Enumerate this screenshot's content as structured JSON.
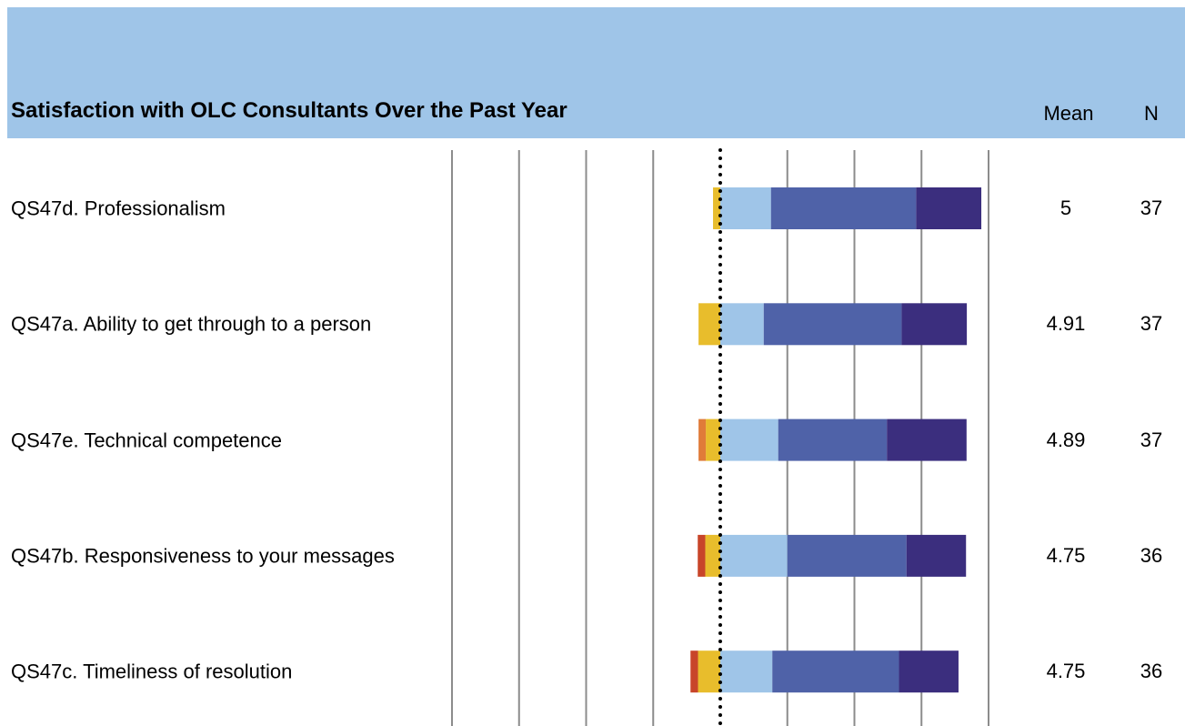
{
  "chart_data": {
    "type": "diverging_bar",
    "title": "Satisfaction with OLC Consultants Over the Past Year",
    "column_headers": [
      "Mean",
      "N"
    ],
    "categories": [
      "QS47d. Professionalism",
      "QS47a. Ability to get through to a person",
      "QS47e. Technical competence",
      "QS47b. Responsiveness to your messages",
      "QS47c. Timeliness of resolution"
    ],
    "mean": [
      5,
      4.91,
      4.89,
      4.75,
      4.75
    ],
    "n": [
      37,
      37,
      37,
      36,
      36
    ],
    "series": [
      {
        "color": "#c8452a",
        "values": [
          0,
          0,
          0,
          -2.8,
          -2.8
        ]
      },
      {
        "color": "#e07b39",
        "values": [
          0,
          0,
          -2.7,
          0,
          0
        ]
      },
      {
        "color": "#e8bd2c",
        "values": [
          -2.7,
          -8.1,
          -5.4,
          -5.6,
          -8.3
        ]
      },
      {
        "color": "#9fc5e8",
        "values": [
          18.9,
          16.2,
          21.6,
          25,
          19.4
        ]
      },
      {
        "color": "#4f62a8",
        "values": [
          54.1,
          51.4,
          40.5,
          44.4,
          47.2
        ]
      },
      {
        "color": "#3b2e7e",
        "values": [
          24.3,
          24.3,
          29.7,
          22.2,
          22.2
        ]
      }
    ],
    "xlim": [
      -100,
      100
    ],
    "xticks": [
      -100,
      -75,
      -50,
      -25,
      0,
      25,
      50,
      75,
      100
    ],
    "grid": true
  }
}
